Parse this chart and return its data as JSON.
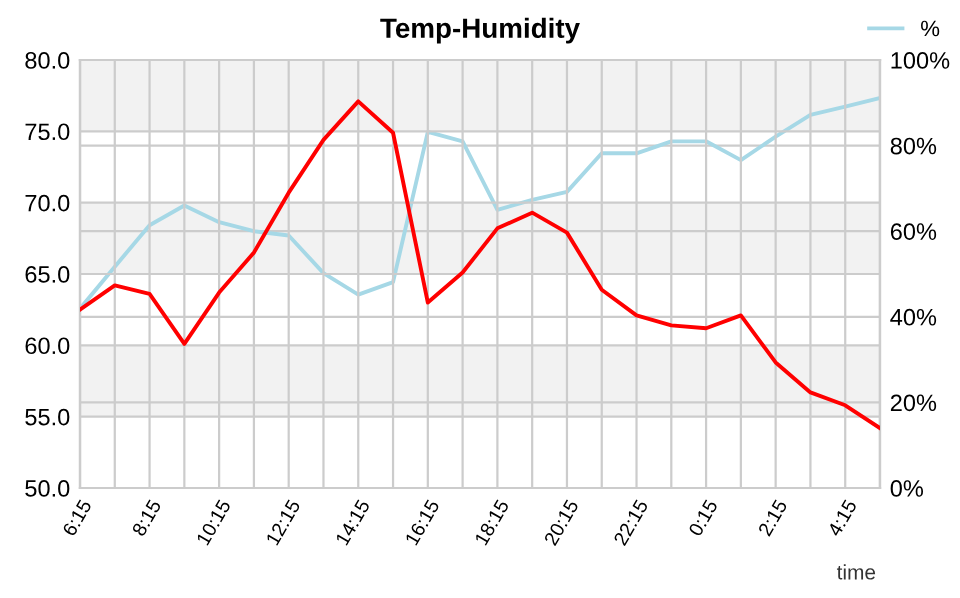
{
  "chart_data": {
    "type": "line",
    "title": "Temp-Humidity",
    "xlabel": "time",
    "categories": [
      "6:15",
      null,
      "8:15",
      null,
      "10:15",
      null,
      "12:15",
      null,
      "14:15",
      null,
      "16:15",
      null,
      "18:15",
      null,
      "20:15",
      null,
      "22:15",
      null,
      "0:15",
      null,
      "2:15",
      null,
      "4:15",
      null
    ],
    "series": [
      {
        "color": "#ff0000",
        "values": [
          62.5,
          64.2,
          63.6,
          60.1,
          63.7,
          66.5,
          70.7,
          74.4,
          77.1,
          74.9,
          63.0,
          65.1,
          68.2,
          69.3,
          67.9,
          63.9,
          62.1,
          61.4,
          61.2,
          62.1,
          58.8,
          56.7,
          55.8,
          54.2
        ]
      },
      {
        "name": "%",
        "color": "#a6d8e6",
        "axis": "y2",
        "values": [
          41.9,
          51.7,
          61.4,
          66.0,
          62.1,
          60.0,
          59.0,
          50.2,
          45.2,
          48.1,
          83.2,
          81.0,
          65.0,
          67.3,
          69.2,
          78.2,
          78.2,
          81.0,
          81.0,
          76.6,
          82.1,
          87.2,
          89.1,
          91.1
        ]
      }
    ],
    "ylim": [
      50,
      80
    ],
    "yticks": [
      {
        "value": 50,
        "label": "50.0"
      },
      {
        "value": 55,
        "label": "55.0"
      },
      {
        "value": 60,
        "label": "60.0"
      },
      {
        "value": 65,
        "label": "65.0"
      },
      {
        "value": 70,
        "label": "70.0"
      },
      {
        "value": 75,
        "label": "75.0"
      },
      {
        "value": 80,
        "label": "80.0"
      }
    ],
    "y2lim": [
      0,
      100
    ],
    "y2ticks": [
      {
        "value": 0,
        "label": "0%"
      },
      {
        "value": 20,
        "label": "20%"
      },
      {
        "value": 40,
        "label": "40%"
      },
      {
        "value": 60,
        "label": "60%"
      },
      {
        "value": 80,
        "label": "80%"
      },
      {
        "value": 100,
        "label": "100%"
      }
    ],
    "bands": [
      {
        "axis": "y",
        "from": 75,
        "to": 80,
        "color": "#f2f2f2"
      },
      {
        "axis": "y",
        "from": 65,
        "to": 70,
        "color": "#f2f2f2"
      },
      {
        "axis": "y",
        "from": 55,
        "to": 60,
        "color": "#f2f2f2"
      }
    ],
    "grid": true,
    "legend": "top right",
    "marker": "none",
    "line_style": "solid"
  }
}
